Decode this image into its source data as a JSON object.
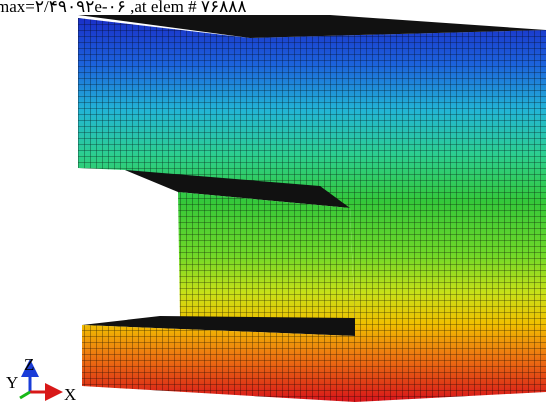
{
  "header": {
    "annotation": "max=۲/۴۹۰۹۲e-۰۶ ,at elem # ۷۶۸۸۸"
  },
  "triad": {
    "z": "Z",
    "y": "Y",
    "x": "X"
  }
}
